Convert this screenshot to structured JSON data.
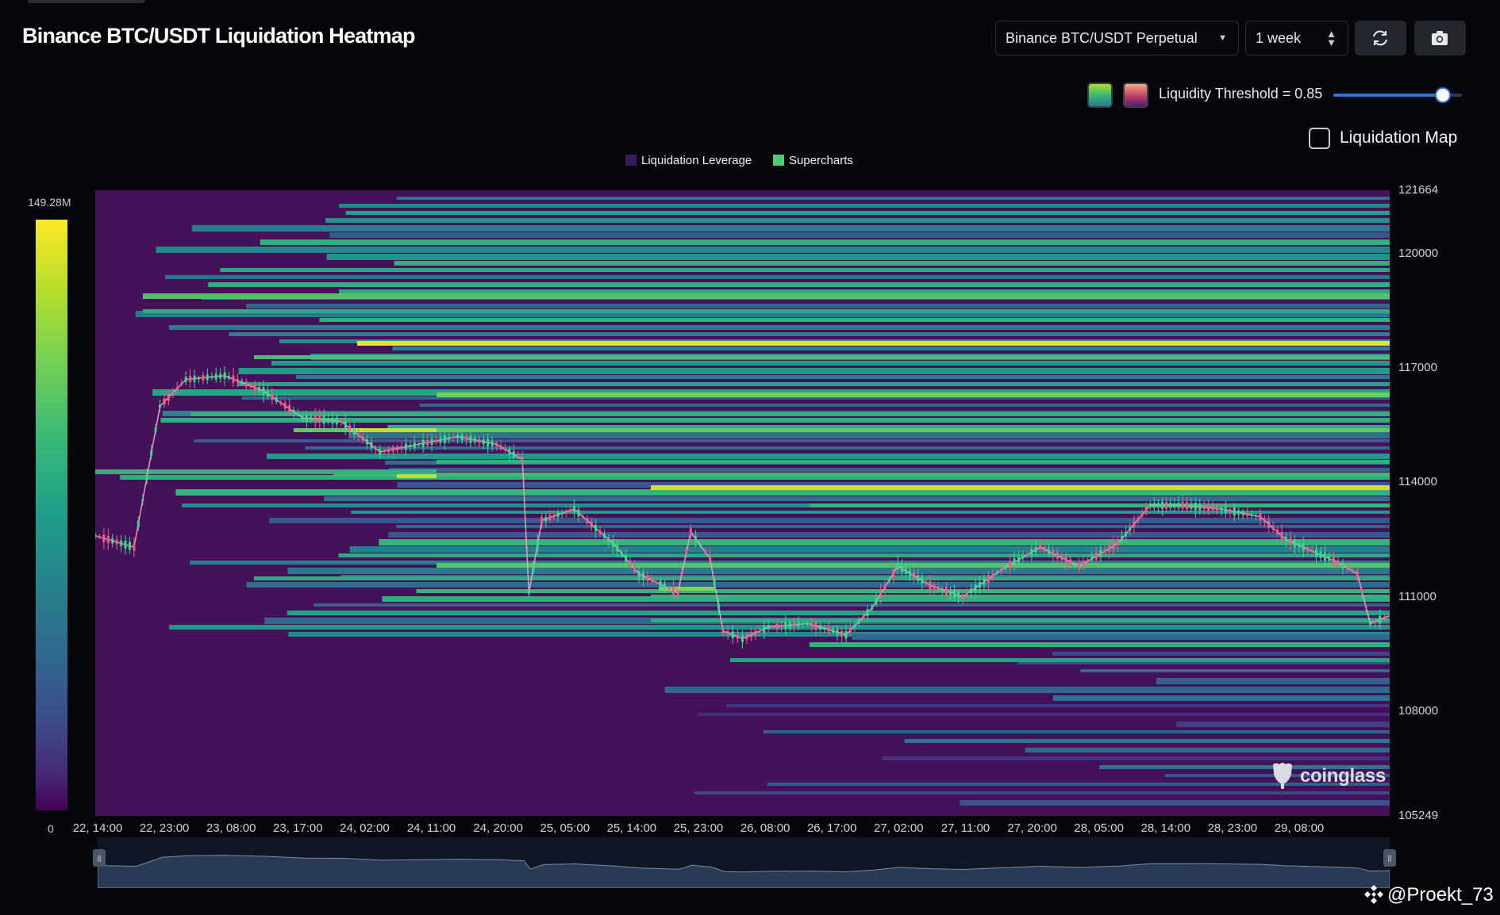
{
  "header": {
    "title": "Binance BTC/USDT Liquidation Heatmap",
    "pair_select": "Binance BTC/USDT Perpetual",
    "range_select": "1 week"
  },
  "controls": {
    "threshold_label": "Liquidity Threshold = 0.85",
    "threshold_value": 0.85,
    "liquidation_map_label": "Liquidation Map",
    "liquidation_map_checked": false,
    "palette_swatches": [
      "viridis-swatch",
      "magma-swatch"
    ]
  },
  "legend": {
    "items": [
      {
        "label": "Liquidation Leverage",
        "color": "#3b1a5a"
      },
      {
        "label": "Supercharts",
        "color": "#4ecb71"
      }
    ]
  },
  "colorbar": {
    "max_label": "149.28M",
    "min_label": "0"
  },
  "brand": {
    "watermark": "coinglass",
    "footer": "@Proekt_73"
  },
  "icons": {
    "refresh": "refresh-icon",
    "screenshot": "camera-icon",
    "dropdown": "caret-down-icon",
    "stepper": "updown-arrows-icon"
  },
  "chart_data": {
    "type": "heatmap",
    "y_axis": {
      "ticks": [
        "121664",
        "120000",
        "117000",
        "114000",
        "111000",
        "108000",
        "105249"
      ],
      "range": [
        105249,
        121664
      ]
    },
    "x_axis": {
      "ticks": [
        "22, 14:00",
        "22, 23:00",
        "23, 08:00",
        "23, 17:00",
        "24, 02:00",
        "24, 11:00",
        "24, 20:00",
        "25, 05:00",
        "25, 14:00",
        "25, 23:00",
        "26, 08:00",
        "26, 17:00",
        "27, 02:00",
        "27, 11:00",
        "27, 20:00",
        "28, 05:00",
        "28, 14:00",
        "28, 23:00",
        "29, 08:00"
      ]
    },
    "color_scale": {
      "min": 0,
      "max_label": "149.28M",
      "palette": "viridis"
    },
    "price_path": [
      [
        0,
        112600
      ],
      [
        0.03,
        112300
      ],
      [
        0.05,
        116000
      ],
      [
        0.07,
        116700
      ],
      [
        0.1,
        116800
      ],
      [
        0.13,
        116400
      ],
      [
        0.16,
        115700
      ],
      [
        0.19,
        115600
      ],
      [
        0.22,
        114800
      ],
      [
        0.25,
        115000
      ],
      [
        0.28,
        115200
      ],
      [
        0.31,
        115000
      ],
      [
        0.33,
        114600
      ],
      [
        0.335,
        111100
      ],
      [
        0.345,
        113000
      ],
      [
        0.37,
        113300
      ],
      [
        0.4,
        112400
      ],
      [
        0.42,
        111600
      ],
      [
        0.45,
        111100
      ],
      [
        0.46,
        112700
      ],
      [
        0.475,
        112000
      ],
      [
        0.485,
        110100
      ],
      [
        0.5,
        109900
      ],
      [
        0.52,
        110200
      ],
      [
        0.55,
        110300
      ],
      [
        0.58,
        110000
      ],
      [
        0.6,
        110700
      ],
      [
        0.62,
        111800
      ],
      [
        0.645,
        111300
      ],
      [
        0.67,
        111000
      ],
      [
        0.7,
        111700
      ],
      [
        0.73,
        112300
      ],
      [
        0.76,
        111800
      ],
      [
        0.79,
        112400
      ],
      [
        0.815,
        113400
      ],
      [
        0.84,
        113400
      ],
      [
        0.87,
        113300
      ],
      [
        0.9,
        113100
      ],
      [
        0.92,
        112500
      ],
      [
        0.94,
        112200
      ],
      [
        0.96,
        111900
      ],
      [
        0.975,
        111600
      ],
      [
        0.985,
        110300
      ],
      [
        1.0,
        110500
      ]
    ]
  }
}
